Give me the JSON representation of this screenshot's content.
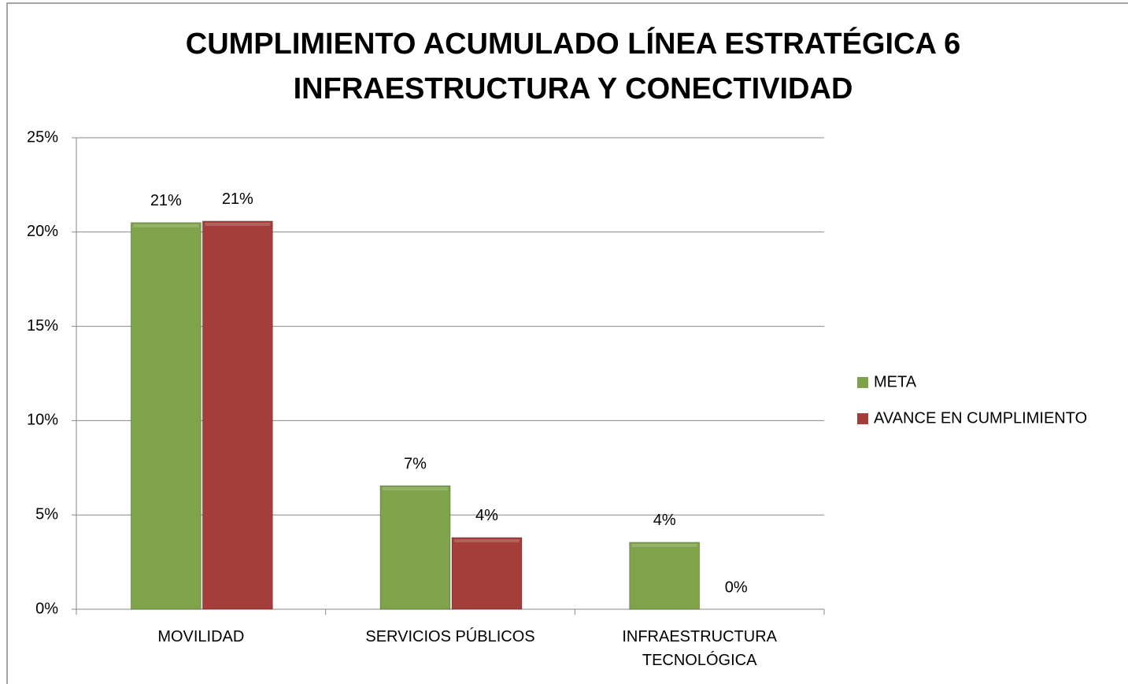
{
  "chart_data": {
    "type": "bar",
    "title": "CUMPLIMIENTO ACUMULADO LÍNEA ESTRATÉGICA 6",
    "subtitle": "INFRAESTRUCTURA Y CONECTIVIDAD",
    "categories": [
      "MOVILIDAD",
      "SERVICIOS PÚBLICOS",
      "INFRAESTRUCTURA TECNOLÓGICA"
    ],
    "series": [
      {
        "name": "META",
        "color": "#7fa34a",
        "values": [
          20.5,
          6.55,
          3.55
        ],
        "value_labels": [
          "21%",
          "7%",
          "4%"
        ]
      },
      {
        "name": "AVANCE EN CUMPLIMIENTO",
        "color": "#a43e3b",
        "values": [
          20.58,
          3.8,
          0
        ],
        "value_labels": [
          "21%",
          "4%",
          "0%"
        ]
      }
    ],
    "ylim": [
      0,
      25
    ],
    "yticks": [
      {
        "value": 0,
        "label": "0%"
      },
      {
        "value": 5,
        "label": "5%"
      },
      {
        "value": 10,
        "label": "10%"
      },
      {
        "value": 15,
        "label": "15%"
      },
      {
        "value": 20,
        "label": "20%"
      },
      {
        "value": 25,
        "label": "25%"
      }
    ],
    "grid": true,
    "legend": "right"
  }
}
